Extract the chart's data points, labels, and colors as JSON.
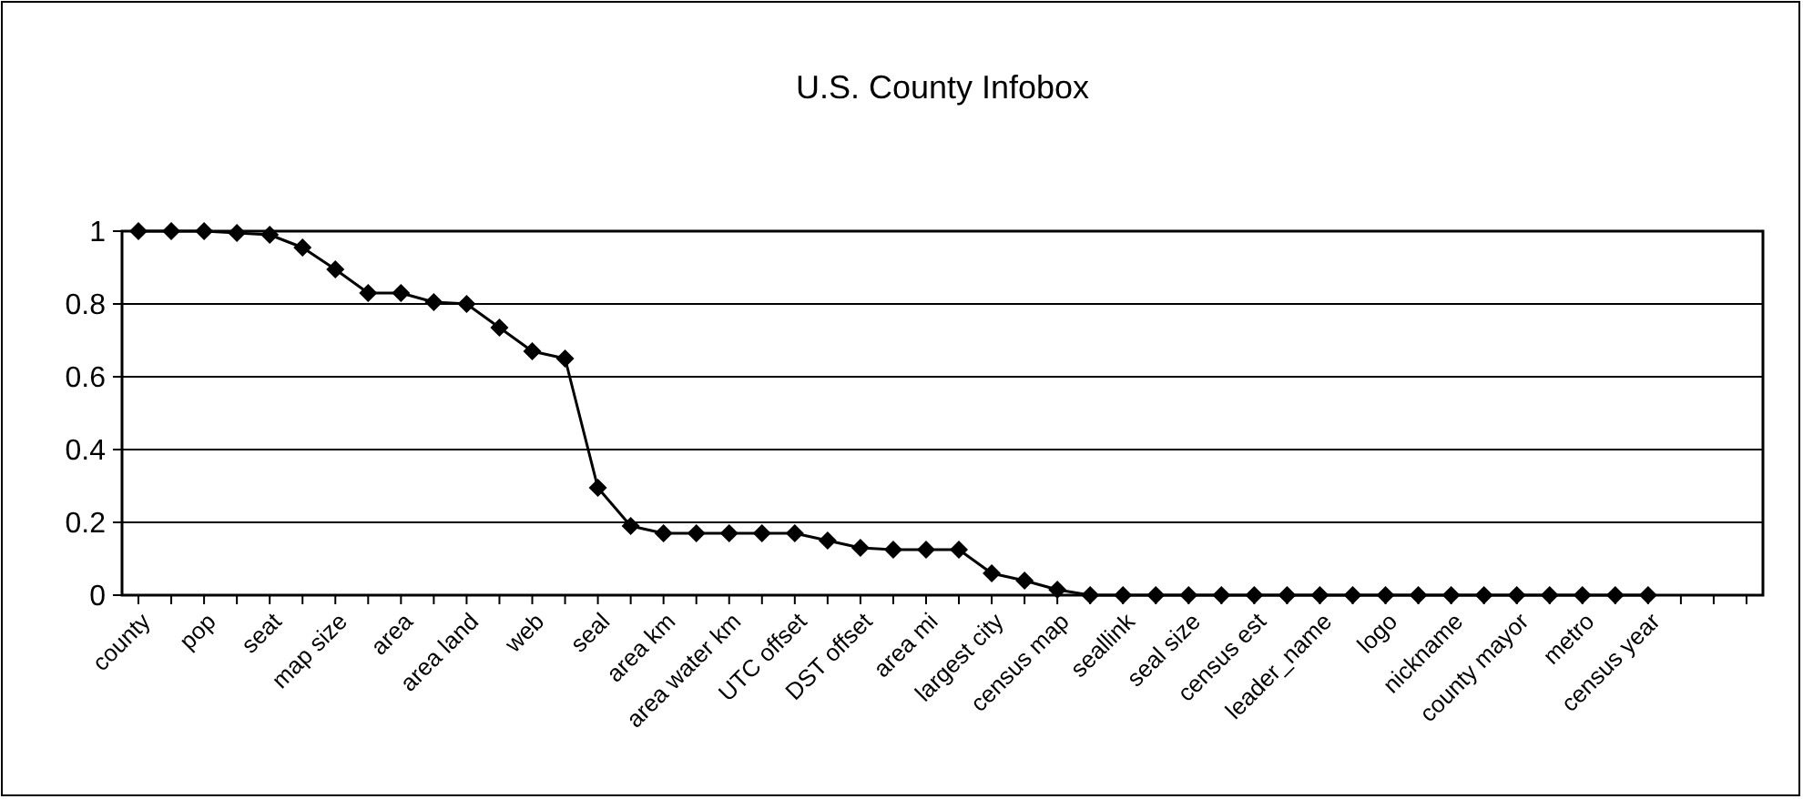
{
  "chart_data": {
    "type": "line",
    "title": "U.S. County Infobox",
    "categories": [
      "county",
      null,
      "pop",
      null,
      "seat",
      null,
      "map size",
      null,
      "area",
      null,
      "area land",
      null,
      "web",
      null,
      "seal",
      null,
      "area km",
      null,
      "area water km",
      null,
      "UTC offset",
      null,
      "DST offset",
      null,
      "area mi",
      null,
      "largest city",
      null,
      "census map",
      null,
      "seallink",
      null,
      "seal size",
      null,
      "census est",
      null,
      "leader_name",
      null,
      "logo",
      null,
      "nickname",
      null,
      "county mayor",
      null,
      "metro",
      null,
      "census year",
      null,
      null,
      null
    ],
    "series": [
      {
        "color": "#000000",
        "values": [
          1,
          1,
          1,
          0.995,
          0.99,
          0.955,
          0.895,
          0.83,
          0.83,
          0.805,
          0.8,
          0.735,
          0.67,
          0.65,
          0.295,
          0.19,
          0.17,
          0.17,
          0.17,
          0.17,
          0.17,
          0.15,
          0.13,
          0.125,
          0.125,
          0.125,
          0.06,
          0.04,
          0.015,
          0,
          0,
          0,
          0,
          0,
          0,
          0,
          0,
          0,
          0,
          0,
          0,
          0,
          0,
          0,
          0,
          0,
          0,
          null,
          null,
          null
        ]
      }
    ],
    "ylim": [
      0,
      1
    ],
    "yticks": [
      0,
      0.2,
      0.4,
      0.6,
      0.8,
      1
    ],
    "grid": "y",
    "marker": "diamond",
    "line_style": "solid"
  }
}
